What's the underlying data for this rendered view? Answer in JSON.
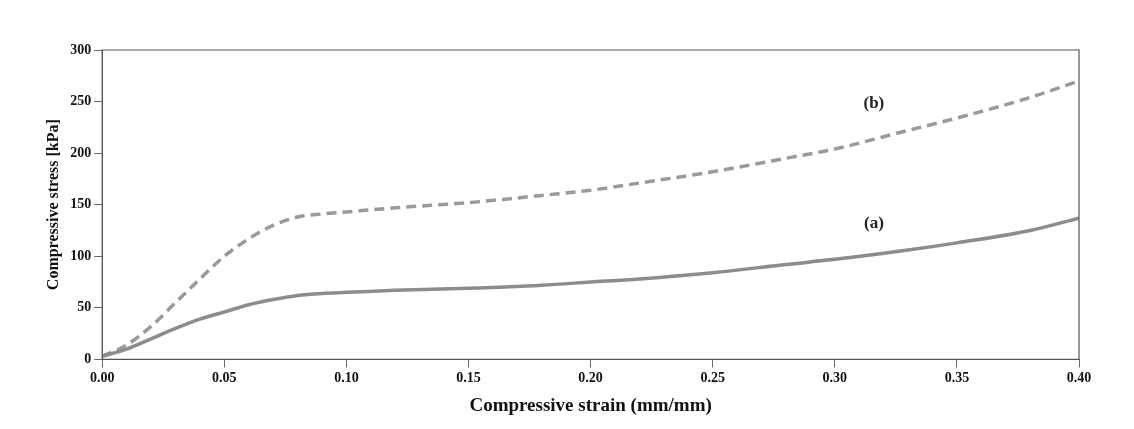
{
  "chart_data": {
    "type": "line",
    "xlabel": "Compressive strain (mm/mm)",
    "ylabel": "Compressive stress [kPa]",
    "xlim": [
      0,
      0.4
    ],
    "xticks": [
      {
        "value": 0,
        "label": "0.00"
      },
      {
        "value": 0.05,
        "label": "0.05"
      },
      {
        "value": 0.1,
        "label": "0.10"
      },
      {
        "value": 0.15,
        "label": "0.15"
      },
      {
        "value": 0.2,
        "label": "0.20"
      },
      {
        "value": 0.25,
        "label": "0.25"
      },
      {
        "value": 0.3,
        "label": "0.30"
      },
      {
        "value": 0.35,
        "label": "0.35"
      },
      {
        "value": 0.4,
        "label": "0.40"
      }
    ],
    "ylim": [
      0,
      300
    ],
    "yticks": [
      0,
      50,
      100,
      150,
      200,
      250,
      300
    ],
    "x": [
      0,
      0.01,
      0.02,
      0.03,
      0.04,
      0.05,
      0.06,
      0.07,
      0.08,
      0.09,
      0.1,
      0.12,
      0.15,
      0.18,
      0.2,
      0.22,
      0.25,
      0.28,
      0.3,
      0.33,
      0.35,
      0.38,
      0.4
    ],
    "grid": false,
    "legend": false,
    "marker": "none",
    "series": [
      {
        "name": "(a)",
        "color": "#8c8c8c",
        "line_style": "solid",
        "values": [
          3,
          10,
          20,
          30,
          39,
          46,
          53,
          58,
          62,
          64,
          65,
          67,
          69,
          72,
          75,
          78,
          84,
          92,
          97,
          106,
          113,
          125,
          137
        ]
      },
      {
        "name": "(b)",
        "color": "#9a9a9a",
        "line_style": "dashed",
        "values": [
          3,
          14,
          32,
          55,
          78,
          100,
          117,
          130,
          138,
          141,
          143,
          147,
          152,
          159,
          164,
          171,
          182,
          195,
          204,
          222,
          234,
          254,
          270
        ]
      }
    ]
  }
}
